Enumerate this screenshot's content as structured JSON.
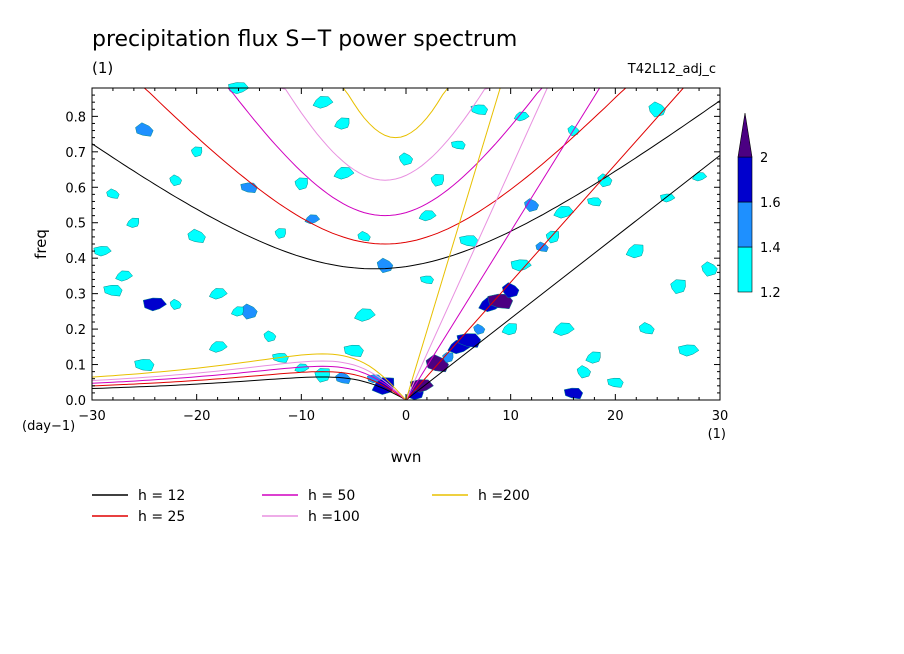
{
  "chart_data": {
    "type": "heatmap",
    "title": "precipitation flux S−T power spectrum",
    "subtitle_left": "(1)",
    "subtitle_right": "T42L12_adj_c",
    "xlabel": "wvn",
    "ylabel": "freq",
    "x_unit": "(1)",
    "y_unit": "(day−1)",
    "xlim": [
      -30,
      30
    ],
    "ylim": [
      0,
      0.88
    ],
    "xticks": [
      -30,
      -20,
      -10,
      0,
      10,
      20,
      30
    ],
    "yticks": [
      0.0,
      0.1,
      0.2,
      0.3,
      0.4,
      0.5,
      0.6,
      0.7,
      0.8
    ],
    "xtick_labels": [
      "−30",
      "−20",
      "−10",
      "0",
      "10",
      "20",
      "30"
    ],
    "ytick_labels": [
      "0.0",
      "0.1",
      "0.2",
      "0.3",
      "0.4",
      "0.5",
      "0.6",
      "0.7",
      "0.8"
    ],
    "grid": false,
    "colorbar": {
      "levels": [
        1.2,
        1.4,
        1.6,
        2.0
      ],
      "level_labels": [
        "1.2",
        "1.4",
        "1.6",
        "2"
      ],
      "colors": [
        "#00ffff",
        "#1e90ff",
        "#0000cd",
        "#4b0082"
      ],
      "extend": "max"
    },
    "legend": {
      "placement": "below",
      "entries": [
        {
          "label": "h = 12",
          "color": "#000000"
        },
        {
          "label": "h = 25",
          "color": "#e00000"
        },
        {
          "label": "h = 50",
          "color": "#d000c0"
        },
        {
          "label": "h =100",
          "color": "#e890e0"
        },
        {
          "label": "h =200",
          "color": "#e8c000"
        }
      ]
    },
    "dispersion_curves": [
      {
        "h": 12,
        "color": "#000000",
        "kelvin": [
          [
            0,
            0
          ],
          [
            30,
            0.69
          ]
        ],
        "ig_min": [
          -3,
          0.37
        ],
        "rossby_peak": [
          -8,
          0.065
        ]
      },
      {
        "h": 25,
        "color": "#e00000",
        "kelvin": [
          [
            0,
            0
          ],
          [
            26.5,
            0.88
          ]
        ],
        "ig_min": [
          -2,
          0.44
        ],
        "rossby_peak": [
          -8,
          0.08
        ]
      },
      {
        "h": 50,
        "color": "#d000c0",
        "kelvin": [
          [
            0,
            0
          ],
          [
            18.5,
            0.88
          ]
        ],
        "ig_min": [
          -2,
          0.52
        ],
        "rossby_peak": [
          -8,
          0.095
        ]
      },
      {
        "h": 100,
        "color": "#e890e0",
        "kelvin": [
          [
            0,
            0
          ],
          [
            13.5,
            0.88
          ]
        ],
        "ig_min": [
          -2,
          0.62
        ],
        "rossby_peak": [
          -8,
          0.11
        ]
      },
      {
        "h": 200,
        "color": "#e8c000",
        "kelvin": [
          [
            0,
            0
          ],
          [
            9,
            0.88
          ]
        ],
        "ig_min": [
          -1,
          0.74
        ],
        "rossby_peak": [
          -8,
          0.13
        ]
      }
    ],
    "power_blobs": [
      [
        1,
        0.02,
        1.6
      ],
      [
        1.5,
        0.04,
        2.0
      ],
      [
        3,
        0.1,
        2.0
      ],
      [
        4,
        0.12,
        1.4
      ],
      [
        5,
        0.15,
        1.6
      ],
      [
        6,
        0.17,
        1.6
      ],
      [
        7,
        0.2,
        1.4
      ],
      [
        8,
        0.27,
        1.6
      ],
      [
        9,
        0.28,
        2.0
      ],
      [
        10,
        0.31,
        1.6
      ],
      [
        10,
        0.2,
        1.2
      ],
      [
        11,
        0.38,
        1.2
      ],
      [
        13,
        0.43,
        1.4
      ],
      [
        14,
        0.46,
        1.2
      ],
      [
        15,
        0.53,
        1.2
      ],
      [
        16,
        0.02,
        1.6
      ],
      [
        17,
        0.08,
        1.2
      ],
      [
        15,
        0.2,
        1.2
      ],
      [
        18,
        0.56,
        1.2
      ],
      [
        19,
        0.62,
        1.2
      ],
      [
        -2,
        0.04,
        1.6
      ],
      [
        -3,
        0.06,
        1.4
      ],
      [
        -6,
        0.06,
        1.4
      ],
      [
        -8,
        0.07,
        1.2
      ],
      [
        -10,
        0.09,
        1.2
      ],
      [
        -12,
        0.12,
        1.2
      ],
      [
        -2,
        0.38,
        1.4
      ],
      [
        -9,
        0.51,
        1.4
      ],
      [
        -15,
        0.6,
        1.4
      ],
      [
        -15,
        0.25,
        1.4
      ],
      [
        -16,
        0.25,
        1.2
      ],
      [
        -24,
        0.27,
        1.6
      ],
      [
        -25,
        0.76,
        1.4
      ],
      [
        -20,
        0.7,
        1.2
      ],
      [
        -27,
        0.35,
        1.2
      ],
      [
        -28,
        0.31,
        1.2
      ],
      [
        -22,
        0.27,
        1.2
      ],
      [
        -18,
        0.3,
        1.2
      ],
      [
        -5,
        0.14,
        1.2
      ],
      [
        -13,
        0.18,
        1.2
      ],
      [
        -6,
        0.78,
        1.2
      ],
      [
        -16,
        0.88,
        1.2
      ],
      [
        -28,
        0.58,
        1.2
      ],
      [
        -10,
        0.61,
        1.2
      ],
      [
        -6,
        0.64,
        1.2
      ],
      [
        2,
        0.34,
        1.2
      ],
      [
        0,
        0.68,
        1.2
      ],
      [
        -4,
        0.24,
        1.2
      ],
      [
        5,
        0.72,
        1.2
      ],
      [
        12,
        0.55,
        1.4
      ],
      [
        22,
        0.42,
        1.2
      ],
      [
        25,
        0.57,
        1.2
      ],
      [
        23,
        0.2,
        1.2
      ],
      [
        26,
        0.32,
        1.2
      ],
      [
        28,
        0.63,
        1.2
      ],
      [
        20,
        0.05,
        1.2
      ],
      [
        29,
        0.37,
        1.2
      ],
      [
        11,
        0.8,
        1.2
      ],
      [
        7,
        0.82,
        1.2
      ],
      [
        24,
        0.82,
        1.2
      ],
      [
        -26,
        0.5,
        1.2
      ],
      [
        -29,
        0.42,
        1.2
      ],
      [
        -20,
        0.46,
        1.2
      ],
      [
        -12,
        0.47,
        1.2
      ],
      [
        2,
        0.52,
        1.2
      ],
      [
        6,
        0.45,
        1.2
      ],
      [
        16,
        0.76,
        1.2
      ],
      [
        -18,
        0.15,
        1.2
      ],
      [
        -25,
        0.1,
        1.2
      ],
      [
        -22,
        0.62,
        1.2
      ],
      [
        18,
        0.12,
        1.2
      ],
      [
        27,
        0.14,
        1.2
      ],
      [
        -4,
        0.46,
        1.2
      ],
      [
        3,
        0.62,
        1.2
      ],
      [
        -8,
        0.84,
        1.2
      ]
    ]
  }
}
